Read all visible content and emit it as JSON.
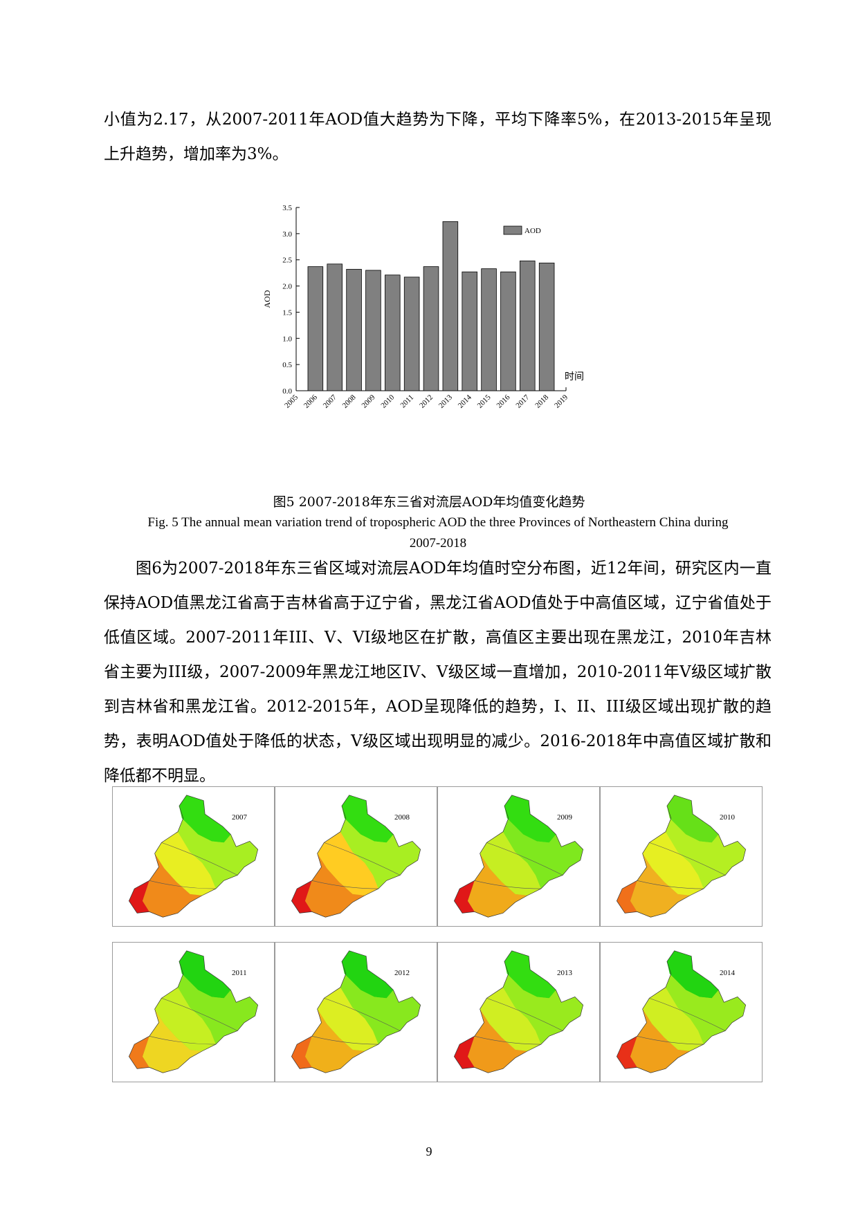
{
  "paragraphs": {
    "p1": "小值为2.17，从2007-2011年AOD值大趋势为下降，平均下降率5%，在2013-2015年呈现上升趋势，增加率为3%。",
    "p2": "图6为2007-2018年东三省区域对流层AOD年均值时空分布图，近12年间，研究区内一直保持AOD值黑龙江省高于吉林省高于辽宁省，黑龙江省AOD值处于中高值区域，辽宁省值处于低值区域。2007-2011年III、V、VI级地区在扩散，高值区主要出现在黑龙江，2010年吉林省主要为III级，2007-2009年黑龙江地区IV、V级区域一直增加，2010-2011年V级区域扩散到吉林省和黑龙江省。2012-2015年，AOD呈现降低的趋势，I、II、III级区域出现扩散的趋势，表明AOD值处于降低的状态，V级区域出现明显的减少。2016-2018年中高值区域扩散和降低都不明显。"
  },
  "figure5": {
    "caption_cn": "图5  2007-2018年东三省对流层AOD年均值变化趋势",
    "caption_en_line1": "Fig. 5  The annual mean variation trend of tropospheric AOD the three Provinces of Northeastern China during",
    "caption_en_line2": "2007-2018"
  },
  "chart_data": {
    "type": "bar",
    "categories": [
      "2006",
      "2007",
      "2008",
      "2009",
      "2010",
      "2011",
      "2012",
      "2013",
      "2014",
      "2015",
      "2016",
      "2017",
      "2018"
    ],
    "series": [
      {
        "name": "AOD",
        "values": [
          2.37,
          2.42,
          2.32,
          2.3,
          2.21,
          2.17,
          2.37,
          3.23,
          2.27,
          2.33,
          2.27,
          2.48,
          2.44
        ]
      }
    ],
    "x_ticks": [
      "2005",
      "2006",
      "2007",
      "2008",
      "2009",
      "2010",
      "2011",
      "2012",
      "2013",
      "2014",
      "2015",
      "2016",
      "2017",
      "2018",
      "2019"
    ],
    "y_ticks": [
      "0.0",
      "0.5",
      "1.0",
      "1.5",
      "2.0",
      "2.5",
      "3.0",
      "3.5"
    ],
    "ylim": [
      0,
      3.5
    ],
    "xlabel": "时间",
    "ylabel": "AOD",
    "legend_position": "top-right",
    "bar_color": "#808080",
    "grid": false
  },
  "maps": [
    {
      "year": "2007",
      "fills": [
        "#33dd11",
        "#a8ee22",
        "#e8ee22",
        "#f08a1a",
        "#e01818"
      ]
    },
    {
      "year": "2008",
      "fills": [
        "#33dd11",
        "#a8ee22",
        "#ffcc22",
        "#f08a1a",
        "#e01818"
      ]
    },
    {
      "year": "2009",
      "fills": [
        "#33dd11",
        "#7fe81e",
        "#c6ee22",
        "#f0aa1a",
        "#e01818"
      ]
    },
    {
      "year": "2010",
      "fills": [
        "#66e018",
        "#b5ef22",
        "#e6ef22",
        "#f0b020",
        "#f0701a"
      ]
    },
    {
      "year": "2011",
      "fills": [
        "#22d411",
        "#88e81e",
        "#c6ef22",
        "#eed622",
        "#f07a1a"
      ]
    },
    {
      "year": "2012",
      "fills": [
        "#22d411",
        "#88e81e",
        "#dcee22",
        "#f0b01a",
        "#f06a1a"
      ]
    },
    {
      "year": "2013",
      "fills": [
        "#33dd11",
        "#99ea1e",
        "#d0ee22",
        "#f09a1a",
        "#e01818"
      ]
    },
    {
      "year": "2014",
      "fills": [
        "#22d411",
        "#99ea1e",
        "#d0ee22",
        "#f0a01a",
        "#e83018"
      ]
    }
  ],
  "page_number": "9"
}
